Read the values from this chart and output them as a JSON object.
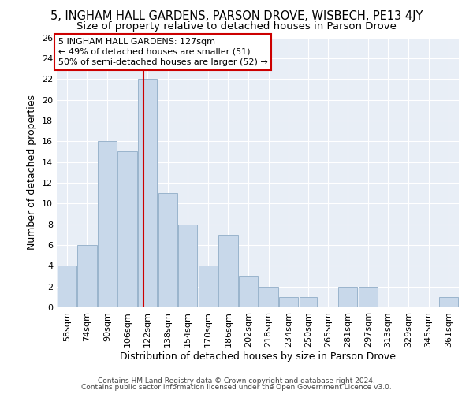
{
  "title": "5, INGHAM HALL GARDENS, PARSON DROVE, WISBECH, PE13 4JY",
  "subtitle": "Size of property relative to detached houses in Parson Drove",
  "xlabel": "Distribution of detached houses by size in Parson Drove",
  "ylabel": "Number of detached properties",
  "footnote1": "Contains HM Land Registry data © Crown copyright and database right 2024.",
  "footnote2": "Contains public sector information licensed under the Open Government Licence v3.0.",
  "annotation_line1": "5 INGHAM HALL GARDENS: 127sqm",
  "annotation_line2": "← 49% of detached houses are smaller (51)",
  "annotation_line3": "50% of semi-detached houses are larger (52) →",
  "bar_color": "#c8d8ea",
  "bar_edge_color": "#9ab4cc",
  "ref_line_color": "#cc0000",
  "ref_line_x": 127,
  "bin_edges": [
    58,
    74,
    90,
    106,
    122,
    138,
    154,
    170,
    186,
    202,
    218,
    234,
    250,
    265,
    281,
    297,
    313,
    329,
    345,
    361,
    377
  ],
  "bar_heights": [
    4,
    6,
    16,
    15,
    22,
    11,
    8,
    4,
    7,
    3,
    2,
    1,
    1,
    0,
    2,
    2,
    0,
    0,
    0,
    1
  ],
  "ylim": [
    0,
    26
  ],
  "yticks": [
    0,
    2,
    4,
    6,
    8,
    10,
    12,
    14,
    16,
    18,
    20,
    22,
    24,
    26
  ],
  "fig_background": "#ffffff",
  "plot_background": "#e8eef6",
  "title_fontsize": 10.5,
  "subtitle_fontsize": 9.5,
  "axis_label_fontsize": 9,
  "tick_fontsize": 8,
  "annotation_fontsize": 8
}
